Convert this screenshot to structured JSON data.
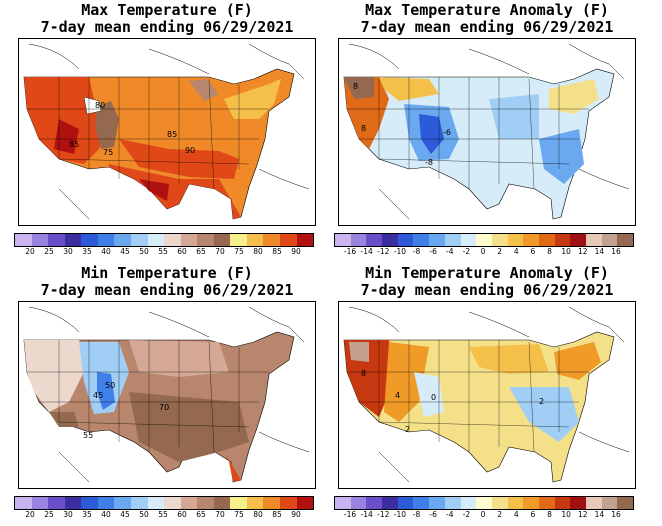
{
  "panels": [
    {
      "title_line1": "Max Temperature (F)",
      "title_line2": "7-day mean ending 06/29/2021",
      "colorbar": {
        "colors": [
          "#c8b4f0",
          "#9a82e0",
          "#6a4fc8",
          "#3b2fa0",
          "#2c5ad8",
          "#3f7fe8",
          "#6aa8f0",
          "#a0cef5",
          "#d6ecf8",
          "#ecd8cc",
          "#d4a894",
          "#b8866c",
          "#94694f",
          "#f5f08a",
          "#f5c04a",
          "#f08a28",
          "#e04818",
          "#b01010"
        ],
        "ticks": [
          "20",
          "25",
          "30",
          "35",
          "40",
          "45",
          "50",
          "55",
          "60",
          "65",
          "70",
          "75",
          "80",
          "85",
          "90"
        ]
      },
      "map_labels": [
        "80",
        "85",
        "75",
        "85",
        "90"
      ]
    },
    {
      "title_line1": "Max Temperature Anomaly (F)",
      "title_line2": "7-day mean ending 06/29/2021",
      "colorbar": {
        "colors": [
          "#c8b4f0",
          "#9a82e0",
          "#6a4fc8",
          "#3b2fa0",
          "#2c5ad8",
          "#3f7fe8",
          "#6aa8f0",
          "#a0cef5",
          "#d6ecf8",
          "#fffcd0",
          "#f5e08a",
          "#f5c04a",
          "#f09a28",
          "#e06a18",
          "#c83810",
          "#a01010",
          "#e8c8b8",
          "#c4a090",
          "#94694f"
        ],
        "ticks": [
          "-16",
          "-14",
          "-12",
          "-10",
          "-8",
          "-6",
          "-4",
          "-2",
          "0",
          "2",
          "4",
          "6",
          "8",
          "10",
          "12",
          "14",
          "16"
        ]
      },
      "map_labels": [
        "8",
        "-8",
        "-6",
        "8"
      ]
    },
    {
      "title_line1": "Min Temperature (F)",
      "title_line2": "7-day mean ending 06/29/2021",
      "colorbar": {
        "colors": [
          "#c8b4f0",
          "#9a82e0",
          "#6a4fc8",
          "#3b2fa0",
          "#2c5ad8",
          "#3f7fe8",
          "#6aa8f0",
          "#a0cef5",
          "#d6ecf8",
          "#ecd8cc",
          "#d4a894",
          "#b8866c",
          "#94694f",
          "#f5f08a",
          "#f5c04a",
          "#f08a28",
          "#e04818",
          "#b01010"
        ],
        "ticks": [
          "20",
          "25",
          "30",
          "35",
          "40",
          "45",
          "50",
          "55",
          "60",
          "65",
          "70",
          "75",
          "80",
          "85",
          "90"
        ]
      },
      "map_labels": [
        "50",
        "70",
        "55",
        "45"
      ]
    },
    {
      "title_line1": "Min Temperature Anomaly (F)",
      "title_line2": "7-day mean ending 06/29/2021",
      "colorbar": {
        "colors": [
          "#c8b4f0",
          "#9a82e0",
          "#6a4fc8",
          "#3b2fa0",
          "#2c5ad8",
          "#3f7fe8",
          "#6aa8f0",
          "#a0cef5",
          "#d6ecf8",
          "#fffcd0",
          "#f5e08a",
          "#f5c04a",
          "#f09a28",
          "#e06a18",
          "#c83810",
          "#a01010",
          "#e8c8b8",
          "#c4a090",
          "#94694f"
        ],
        "ticks": [
          "-16",
          "-14",
          "-12",
          "-10",
          "-8",
          "-6",
          "-4",
          "-2",
          "0",
          "2",
          "4",
          "6",
          "8",
          "10",
          "12",
          "14",
          "16"
        ]
      },
      "map_labels": [
        "8",
        "4",
        "2",
        "0",
        "2"
      ]
    }
  ]
}
